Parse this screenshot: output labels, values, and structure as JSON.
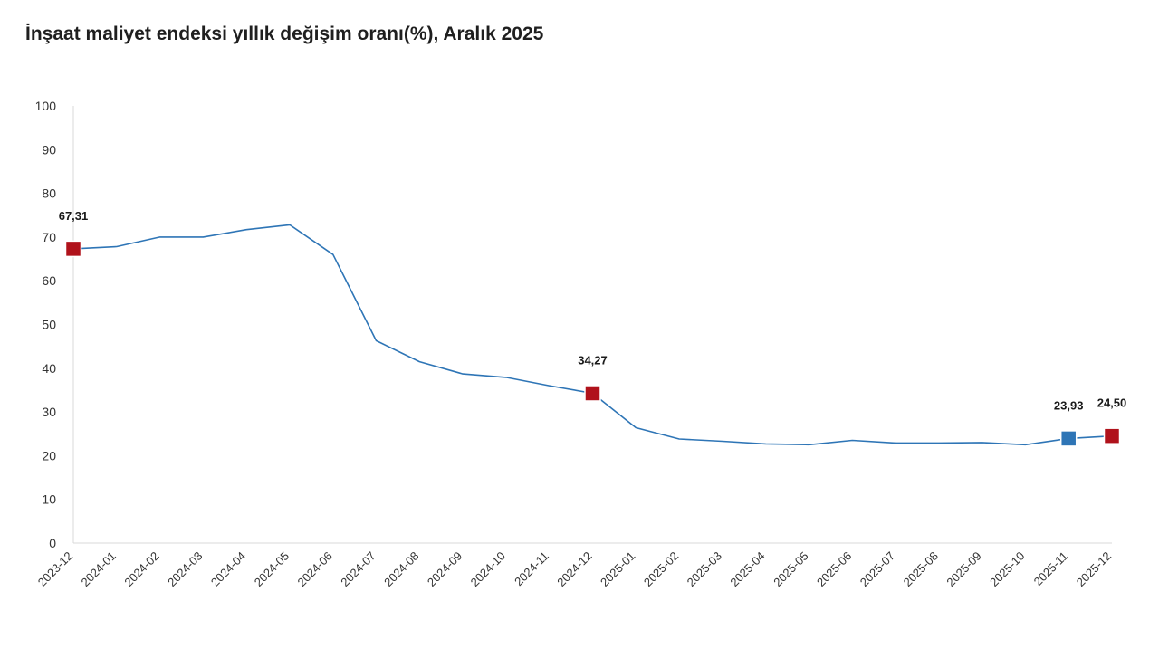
{
  "chart_data": {
    "type": "line",
    "title": "İnşaat maliyet endeksi yıllık değişim oranı(%), Aralık 2025",
    "xlabel": "",
    "ylabel": "",
    "ylim": [
      0,
      100
    ],
    "yticks": [
      0,
      10,
      20,
      30,
      40,
      50,
      60,
      70,
      80,
      90,
      100
    ],
    "grid": false,
    "categories": [
      "2023-12",
      "2024-01",
      "2024-02",
      "2024-03",
      "2024-04",
      "2024-05",
      "2024-06",
      "2024-07",
      "2024-08",
      "2024-09",
      "2024-10",
      "2024-11",
      "2024-12",
      "2025-01",
      "2025-02",
      "2025-03",
      "2025-04",
      "2025-05",
      "2025-06",
      "2025-07",
      "2025-08",
      "2025-09",
      "2025-10",
      "2025-11",
      "2025-12"
    ],
    "series": [
      {
        "color": "#2e75b6",
        "values": [
          67.31,
          67.8,
          70.0,
          70.0,
          71.7,
          72.8,
          66.0,
          46.3,
          41.5,
          38.7,
          37.9,
          36.0,
          34.27,
          26.4,
          23.8,
          23.3,
          22.7,
          22.5,
          23.5,
          22.9,
          22.9,
          23.0,
          22.5,
          23.93,
          24.5
        ]
      }
    ],
    "highlights": [
      {
        "index": 0,
        "label": "67,31",
        "color": "#b0121b"
      },
      {
        "index": 12,
        "label": "34,27",
        "color": "#b0121b"
      },
      {
        "index": 23,
        "label": "23,93",
        "color": "#2e75b6"
      },
      {
        "index": 24,
        "label": "24,50",
        "color": "#b0121b"
      }
    ]
  }
}
